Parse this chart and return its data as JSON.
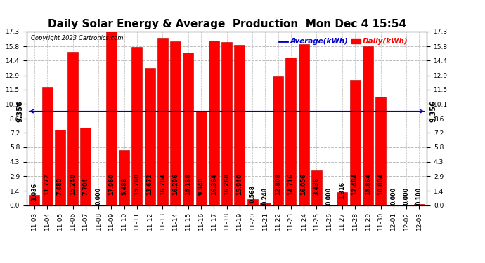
{
  "title": "Daily Solar Energy & Average  Production  Mon Dec 4 15:54",
  "copyright": "Copyright 2023 Cartronics.com",
  "legend_average": "Average(kWh)",
  "legend_daily": "Daily(kWh)",
  "average_line": 9.356,
  "categories": [
    "11-03",
    "11-04",
    "11-05",
    "11-06",
    "11-07",
    "11-08",
    "11-09",
    "11-10",
    "11-11",
    "11-12",
    "11-13",
    "11-14",
    "11-15",
    "11-16",
    "11-17",
    "11-18",
    "11-19",
    "11-20",
    "11-21",
    "11-22",
    "11-23",
    "11-24",
    "11-25",
    "11-26",
    "11-27",
    "11-28",
    "11-29",
    "11-30",
    "12-01",
    "12-02",
    "12-03"
  ],
  "values": [
    1.036,
    11.772,
    7.48,
    15.24,
    7.704,
    0.0,
    17.96,
    5.488,
    15.78,
    13.672,
    16.704,
    16.296,
    15.188,
    9.34,
    16.364,
    16.268,
    15.94,
    0.568,
    0.248,
    12.808,
    14.716,
    16.056,
    3.436,
    0.0,
    1.316,
    12.484,
    15.864,
    10.804,
    0.0,
    0.0,
    0.1
  ],
  "bar_color": "#ff0000",
  "bar_edge_color": "#bb0000",
  "average_line_color": "#0000cc",
  "yticks": [
    0.0,
    1.4,
    2.9,
    4.3,
    5.8,
    7.2,
    8.6,
    10.1,
    11.5,
    12.9,
    14.4,
    15.8,
    17.3
  ],
  "ylim": [
    0.0,
    17.3
  ],
  "background_color": "#ffffff",
  "grid_color": "#bbbbbb",
  "title_fontsize": 11,
  "axis_fontsize": 6.5,
  "label_fontsize": 5.8,
  "copyright_fontsize": 6,
  "legend_fontsize": 7.5,
  "avg_label_fontsize": 7
}
